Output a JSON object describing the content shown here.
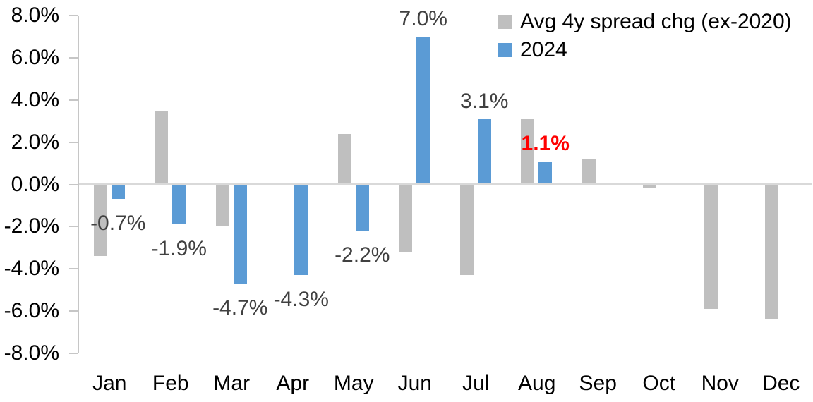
{
  "chart_data": {
    "type": "bar",
    "title": "",
    "categories": [
      "Jan",
      "Feb",
      "Mar",
      "Apr",
      "May",
      "Jun",
      "Jul",
      "Aug",
      "Sep",
      "Oct",
      "Nov",
      "Dec"
    ],
    "series": [
      {
        "key": "avg4y",
        "name": "Avg 4y spread chg (ex-2020)",
        "color": "#BFBFBF",
        "values": [
          -3.4,
          3.5,
          -2.0,
          0.0,
          2.4,
          -3.2,
          -4.3,
          3.1,
          1.2,
          -0.2,
          -5.9,
          -6.4
        ]
      },
      {
        "key": "y2024",
        "name": "2024",
        "color": "#5B9BD5",
        "values": [
          -0.7,
          -1.9,
          -4.7,
          -4.3,
          -2.2,
          7.0,
          3.1,
          1.1,
          null,
          null,
          null,
          null
        ],
        "data_labels": [
          {
            "text": "-0.7%",
            "color": "#404040",
            "bold": false
          },
          {
            "text": "-1.9%",
            "color": "#404040",
            "bold": false
          },
          {
            "text": "-4.7%",
            "color": "#404040",
            "bold": false
          },
          {
            "text": "-4.3%",
            "color": "#404040",
            "bold": false
          },
          {
            "text": "-2.2%",
            "color": "#404040",
            "bold": false
          },
          {
            "text": "7.0%",
            "color": "#404040",
            "bold": false
          },
          {
            "text": "3.1%",
            "color": "#404040",
            "bold": false
          },
          {
            "text": "1.1%",
            "color": "#FF0000",
            "bold": true
          },
          null,
          null,
          null,
          null
        ]
      }
    ],
    "ylim": [
      -8,
      8
    ],
    "y_tick_step": 2,
    "y_ticks": [
      "8.0%",
      "6.0%",
      "4.0%",
      "2.0%",
      "0.0%",
      "-2.0%",
      "-4.0%",
      "-6.0%",
      "-8.0%"
    ],
    "grid": false,
    "legend_position": "top-right",
    "axis_color": "#C6C6C6",
    "zero_line_color": "#D9D9D9"
  }
}
